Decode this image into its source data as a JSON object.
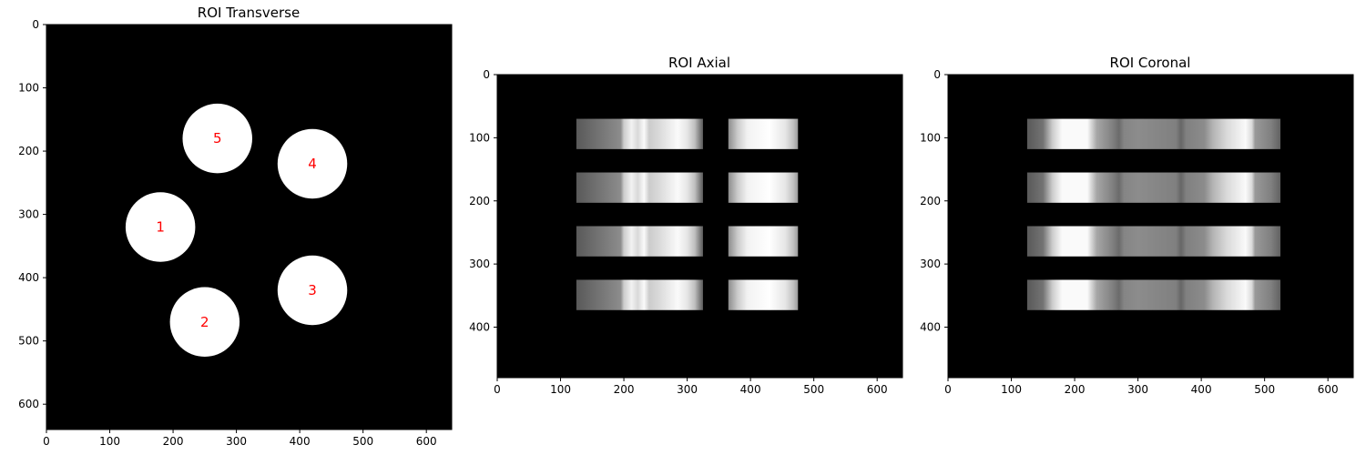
{
  "chart_data": [
    {
      "type": "heatmap",
      "title": "ROI Transverse",
      "xlabel": "",
      "ylabel": "",
      "xlim": [
        0,
        640
      ],
      "ylim": [
        640,
        0
      ],
      "xticks": [
        0,
        100,
        200,
        300,
        400,
        500,
        600
      ],
      "yticks": [
        0,
        100,
        200,
        300,
        400,
        500,
        600
      ],
      "background": "#000000",
      "rois": [
        {
          "label": "1",
          "cx": 180,
          "cy": 320,
          "r": 55
        },
        {
          "label": "2",
          "cx": 250,
          "cy": 470,
          "r": 55
        },
        {
          "label": "3",
          "cx": 420,
          "cy": 420,
          "r": 55
        },
        {
          "label": "4",
          "cx": 420,
          "cy": 220,
          "r": 55
        },
        {
          "label": "5",
          "cx": 270,
          "cy": 180,
          "r": 55
        }
      ],
      "label_color": "#ff0000",
      "roi_color": "#ffffff"
    },
    {
      "type": "heatmap",
      "title": "ROI Axial",
      "xlabel": "",
      "ylabel": "",
      "xlim": [
        0,
        640
      ],
      "ylim": [
        480,
        0
      ],
      "xticks": [
        0,
        100,
        200,
        300,
        400,
        500,
        600
      ],
      "yticks": [
        0,
        100,
        200,
        300,
        400
      ],
      "background": "#000000",
      "rows": [
        [
          70,
          118
        ],
        [
          155,
          203
        ],
        [
          240,
          288
        ],
        [
          325,
          373
        ]
      ],
      "segments": [
        {
          "x": [
            125,
            325
          ],
          "profile": [
            [
              125,
              0.35
            ],
            [
              160,
              0.45
            ],
            [
              195,
              0.55
            ],
            [
              200,
              0.8
            ],
            [
              212,
              0.95
            ],
            [
              222,
              0.85
            ],
            [
              232,
              0.98
            ],
            [
              240,
              0.8
            ],
            [
              255,
              0.85
            ],
            [
              285,
              0.98
            ],
            [
              300,
              0.9
            ],
            [
              312,
              0.75
            ],
            [
              320,
              0.5
            ],
            [
              325,
              0.35
            ]
          ]
        },
        {
          "x": [
            365,
            475
          ],
          "profile": [
            [
              365,
              0.55
            ],
            [
              380,
              0.8
            ],
            [
              395,
              0.95
            ],
            [
              430,
              1.0
            ],
            [
              455,
              0.9
            ],
            [
              468,
              0.75
            ],
            [
              475,
              0.6
            ]
          ]
        }
      ]
    },
    {
      "type": "heatmap",
      "title": "ROI Coronal",
      "xlabel": "",
      "ylabel": "",
      "xlim": [
        0,
        640
      ],
      "ylim": [
        480,
        0
      ],
      "xticks": [
        0,
        100,
        200,
        300,
        400,
        500,
        600
      ],
      "yticks": [
        0,
        100,
        200,
        300,
        400
      ],
      "background": "#000000",
      "rows": [
        [
          70,
          118
        ],
        [
          155,
          203
        ],
        [
          240,
          288
        ],
        [
          325,
          373
        ]
      ],
      "segments": [
        {
          "x": [
            125,
            525
          ],
          "profile": [
            [
              125,
              0.35
            ],
            [
              150,
              0.45
            ],
            [
              165,
              0.8
            ],
            [
              180,
              0.98
            ],
            [
              220,
              0.98
            ],
            [
              235,
              0.65
            ],
            [
              260,
              0.5
            ],
            [
              270,
              0.42
            ],
            [
              278,
              0.52
            ],
            [
              300,
              0.55
            ],
            [
              360,
              0.5
            ],
            [
              368,
              0.4
            ],
            [
              376,
              0.5
            ],
            [
              405,
              0.55
            ],
            [
              418,
              0.7
            ],
            [
              440,
              0.85
            ],
            [
              470,
              0.98
            ],
            [
              480,
              0.85
            ],
            [
              485,
              0.6
            ],
            [
              510,
              0.5
            ],
            [
              525,
              0.38
            ]
          ]
        }
      ]
    }
  ]
}
